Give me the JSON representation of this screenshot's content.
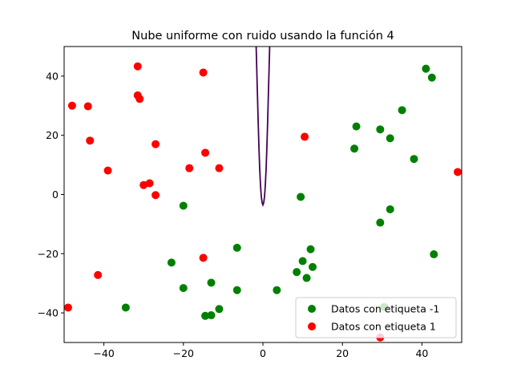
{
  "chart_data": {
    "type": "scatter",
    "title": "Nube uniforme con ruido usando la función 4",
    "xlabel": "",
    "ylabel": "",
    "xlim": [
      -50,
      50
    ],
    "ylim": [
      -50,
      50
    ],
    "xticks": [
      -40,
      -20,
      0,
      20,
      40
    ],
    "yticks": [
      -40,
      -20,
      0,
      20,
      40
    ],
    "xtick_labels": [
      "−40",
      "−20",
      "0",
      "20",
      "40"
    ],
    "ytick_labels": [
      "−40",
      "−20",
      "0",
      "20",
      "40"
    ],
    "grid": false,
    "legend_position": "lower-right",
    "curve": {
      "color": "#440154",
      "points": [
        [
          -1.7,
          50
        ],
        [
          -1.4,
          35
        ],
        [
          -1.2,
          25
        ],
        [
          -1.0,
          16
        ],
        [
          -0.8,
          8.5
        ],
        [
          -0.6,
          3
        ],
        [
          -0.4,
          -0.8
        ],
        [
          -0.2,
          -2.8
        ],
        [
          0.0,
          -3.5
        ],
        [
          0.2,
          -2.8
        ],
        [
          0.4,
          -0.8
        ],
        [
          0.6,
          3
        ],
        [
          0.8,
          8.5
        ],
        [
          1.0,
          16
        ],
        [
          1.2,
          25
        ],
        [
          1.4,
          35
        ],
        [
          1.7,
          50
        ]
      ]
    },
    "series": [
      {
        "name": "Datos con etiqueta -1",
        "color": "#008000",
        "points": [
          [
            41,
            42.5
          ],
          [
            42.5,
            39.5
          ],
          [
            35,
            28.5
          ],
          [
            23.5,
            23
          ],
          [
            29.5,
            22
          ],
          [
            32,
            19
          ],
          [
            23,
            15.5
          ],
          [
            38,
            12
          ],
          [
            9.5,
            -0.8
          ],
          [
            32,
            -5
          ],
          [
            29.5,
            -9.5
          ],
          [
            -20,
            -3.8
          ],
          [
            43,
            -20.2
          ],
          [
            -6.5,
            -18
          ],
          [
            12,
            -18.5
          ],
          [
            -23,
            -23
          ],
          [
            10,
            -22.5
          ],
          [
            12.5,
            -24.5
          ],
          [
            8.5,
            -26.2
          ],
          [
            11,
            -28.2
          ],
          [
            -13,
            -29.8
          ],
          [
            -20,
            -31.6
          ],
          [
            -6.5,
            -32.3
          ],
          [
            3.5,
            -32.3
          ],
          [
            -34.5,
            -38.2
          ],
          [
            -11,
            -38.7
          ],
          [
            -13,
            -40.8
          ],
          [
            -14.5,
            -41
          ],
          [
            30.5,
            -38
          ]
        ]
      },
      {
        "name": "Datos con etiqueta 1",
        "color": "#ff0000",
        "points": [
          [
            -31.5,
            43.3
          ],
          [
            -15,
            41.2
          ],
          [
            -31.5,
            33.5
          ],
          [
            -31,
            32.3
          ],
          [
            -48,
            30
          ],
          [
            -44,
            29.8
          ],
          [
            -43.5,
            18.2
          ],
          [
            -27,
            17
          ],
          [
            10.5,
            19.5
          ],
          [
            -14.5,
            14.1
          ],
          [
            -39,
            8.1
          ],
          [
            -18.5,
            8.9
          ],
          [
            -11,
            8.9
          ],
          [
            49,
            7.6
          ],
          [
            -28.5,
            3.8
          ],
          [
            -30,
            3.2
          ],
          [
            -27,
            -0.2
          ],
          [
            -15,
            -21.4
          ],
          [
            -41.5,
            -27.2
          ],
          [
            -49,
            -38.2
          ],
          [
            29.5,
            -48.3
          ]
        ]
      }
    ]
  }
}
